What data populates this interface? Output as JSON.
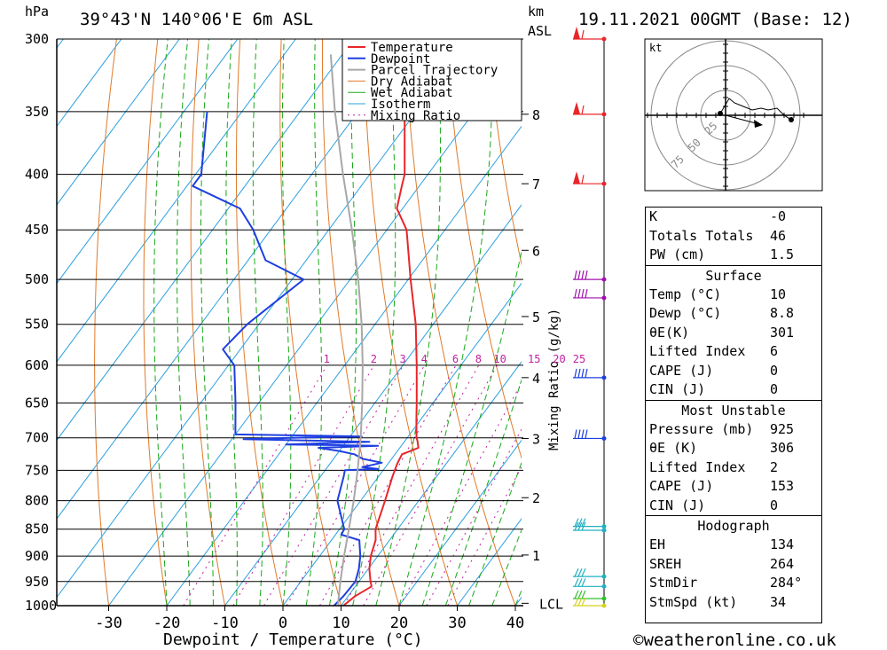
{
  "header": {
    "location": "39°43'N 140°06'E 6m ASL",
    "date": "19.11.2021 00GMT (Base: 12)",
    "hpa_label": "hPa",
    "km_label": "km",
    "asl_label": "ASL"
  },
  "chart_data": {
    "type": "skew-t",
    "xlabel": "Dewpoint / Temperature (°C)",
    "ylabel": "hPa",
    "x_ticks": [
      -30,
      -20,
      -10,
      0,
      10,
      20,
      30,
      40
    ],
    "pressure_levels": [
      300,
      350,
      400,
      450,
      500,
      550,
      600,
      650,
      700,
      750,
      800,
      850,
      900,
      950,
      1000
    ],
    "pressure_range": [
      300,
      1000
    ],
    "km_ticks": [
      {
        "label": "8",
        "p": 352
      },
      {
        "label": "7",
        "p": 408
      },
      {
        "label": "6",
        "p": 470
      },
      {
        "label": "5",
        "p": 541
      },
      {
        "label": "4",
        "p": 616
      },
      {
        "label": "3",
        "p": 701
      },
      {
        "label": "2",
        "p": 795
      },
      {
        "label": "1",
        "p": 898
      },
      {
        "label": "LCL",
        "p": 995
      }
    ],
    "mixing_ratio_label": "Mixing Ratio (g/kg)",
    "mixing_ratios": [
      "1",
      "2",
      "3",
      "4",
      "6",
      "8",
      "10",
      "15",
      "20",
      "25"
    ],
    "legend": [
      "Temperature",
      "Dewpoint",
      "Parcel Trajectory",
      "Dry Adiabat",
      "Wet Adiabat",
      "Isotherm",
      "Mixing Ratio"
    ],
    "colors": {
      "temperature": "#e8262a",
      "dewpoint": "#1e3fe0",
      "parcel": "#a8a8a8",
      "dry_adiabat": "#e07a2a",
      "wet_adiabat": "#18a818",
      "isotherm": "#2aa0e0",
      "mixing_ratio": "#c020a0"
    },
    "series": [
      {
        "name": "Temperature",
        "points": [
          [
            1000,
            10.4
          ],
          [
            980,
            11.2
          ],
          [
            960,
            12.8
          ],
          [
            950,
            12.0
          ],
          [
            925,
            10.2
          ],
          [
            900,
            8.8
          ],
          [
            870,
            7.6
          ],
          [
            850,
            6.2
          ],
          [
            800,
            4.2
          ],
          [
            760,
            2.4
          ],
          [
            740,
            1.6
          ],
          [
            725,
            1.2
          ],
          [
            715,
            3.2
          ],
          [
            705,
            2.2
          ],
          [
            700,
            1.6
          ],
          [
            675,
            -0.6
          ],
          [
            650,
            -2.8
          ],
          [
            600,
            -7.6
          ],
          [
            550,
            -13.0
          ],
          [
            500,
            -19.6
          ],
          [
            450,
            -26.6
          ],
          [
            430,
            -31.0
          ],
          [
            410,
            -33.0
          ],
          [
            400,
            -34.0
          ],
          [
            350,
            -42.0
          ],
          [
            300,
            -50.0
          ]
        ]
      },
      {
        "name": "Dewpoint",
        "points": [
          [
            1000,
            8.8
          ],
          [
            980,
            9.2
          ],
          [
            950,
            9.4
          ],
          [
            925,
            8.4
          ],
          [
            900,
            7.0
          ],
          [
            870,
            4.8
          ],
          [
            860,
            1.0
          ],
          [
            850,
            0.8
          ],
          [
            800,
            -4.0
          ],
          [
            760,
            -6.0
          ],
          [
            750,
            -6.6
          ],
          [
            748,
            -1.0
          ],
          [
            745,
            -4.0
          ],
          [
            738,
            -1.2
          ],
          [
            732,
            -5.0
          ],
          [
            725,
            -7.0
          ],
          [
            720,
            -10.0
          ],
          [
            715,
            -14.0
          ],
          [
            712,
            -4.0
          ],
          [
            710,
            -20.0
          ],
          [
            706,
            -6.0
          ],
          [
            702,
            -28.0
          ],
          [
            700,
            -20.0
          ],
          [
            698,
            -8.0
          ],
          [
            695,
            -30.0
          ],
          [
            650,
            -34.0
          ],
          [
            600,
            -39.0
          ],
          [
            580,
            -43.0
          ],
          [
            550,
            -42.0
          ],
          [
            500,
            -38.0
          ],
          [
            480,
            -47.0
          ],
          [
            450,
            -53.0
          ],
          [
            430,
            -58.0
          ],
          [
            410,
            -69.0
          ],
          [
            400,
            -69.0
          ],
          [
            350,
            -76.0
          ]
        ]
      },
      {
        "name": "Parcel Trajectory",
        "points": [
          [
            1000,
            9.6
          ],
          [
            995,
            9.2
          ],
          [
            950,
            6.8
          ],
          [
            900,
            4.2
          ],
          [
            850,
            1.6
          ],
          [
            800,
            -1.2
          ],
          [
            750,
            -4.4
          ],
          [
            700,
            -8.0
          ],
          [
            650,
            -12.2
          ],
          [
            600,
            -16.9
          ],
          [
            550,
            -22.3
          ],
          [
            500,
            -28.6
          ],
          [
            450,
            -36.0
          ],
          [
            400,
            -44.6
          ],
          [
            350,
            -54.0
          ],
          [
            310,
            -62.0
          ]
        ]
      }
    ],
    "wind_barbs": [
      {
        "p": 300,
        "color": "#e8262a"
      },
      {
        "p": 352,
        "color": "#e8262a"
      },
      {
        "p": 408,
        "color": "#e8262a"
      },
      {
        "p": 500,
        "color": "#a010b0"
      },
      {
        "p": 520,
        "color": "#a010b0"
      },
      {
        "p": 616,
        "color": "#1e3fe0"
      },
      {
        "p": 701,
        "color": "#1e3fe0"
      },
      {
        "p": 845,
        "color": "#20b0c0"
      },
      {
        "p": 852,
        "color": "#20b0c0"
      },
      {
        "p": 940,
        "color": "#20b0c0"
      },
      {
        "p": 960,
        "color": "#20b0c0"
      },
      {
        "p": 985,
        "color": "#30c030"
      },
      {
        "p": 1000,
        "color": "#d8d020"
      }
    ]
  },
  "hodograph": {
    "unit": "kt",
    "rings": [
      "25",
      "50",
      "75"
    ]
  },
  "indices": {
    "top": [
      {
        "label": "K",
        "value": "-0"
      },
      {
        "label": "Totals Totals",
        "value": "46"
      },
      {
        "label": "PW (cm)",
        "value": "1.5"
      }
    ],
    "surface": {
      "title": "Surface",
      "rows": [
        {
          "label": "Temp (°C)",
          "value": "10"
        },
        {
          "label": "Dewp (°C)",
          "value": "8.8"
        },
        {
          "label": "θE(K)",
          "value": "301"
        },
        {
          "label": "Lifted Index",
          "value": "6"
        },
        {
          "label": "CAPE (J)",
          "value": "0"
        },
        {
          "label": "CIN (J)",
          "value": "0"
        }
      ]
    },
    "most_unstable": {
      "title": "Most Unstable",
      "rows": [
        {
          "label": "Pressure (mb)",
          "value": "925"
        },
        {
          "label": "θE (K)",
          "value": "306"
        },
        {
          "label": "Lifted Index",
          "value": "2"
        },
        {
          "label": "CAPE (J)",
          "value": "153"
        },
        {
          "label": "CIN (J)",
          "value": "0"
        }
      ]
    },
    "hodograph_section": {
      "title": "Hodograph",
      "rows": [
        {
          "label": "EH",
          "value": "134"
        },
        {
          "label": "SREH",
          "value": "264"
        },
        {
          "label": "StmDir",
          "value": "284°"
        },
        {
          "label": "StmSpd (kt)",
          "value": "34"
        }
      ]
    }
  },
  "footer": {
    "copyright": "©weatheronline.co.uk"
  }
}
